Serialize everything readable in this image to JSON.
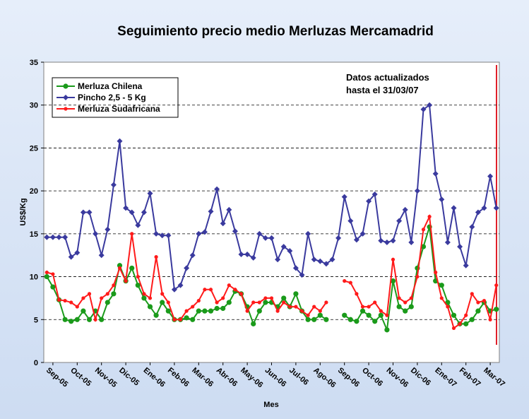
{
  "chart_data": {
    "type": "line",
    "title": "Seguimiento precio medio Merluzas Mercamadrid",
    "y_label": "US$/Kg",
    "x_label": "Mes",
    "annotation": [
      "Datos actualizados",
      "hasta el 31/03/07"
    ],
    "categories": [
      null,
      "Sep-05",
      null,
      null,
      null,
      "Oct-05",
      null,
      null,
      null,
      "Nov-05",
      null,
      null,
      null,
      "Dic-05",
      null,
      null,
      null,
      "Ene-06",
      null,
      null,
      null,
      "Feb-06",
      null,
      null,
      null,
      "Mar-06",
      null,
      null,
      null,
      "Abr-06",
      null,
      null,
      null,
      "May-06",
      null,
      null,
      null,
      "Jun-06",
      null,
      null,
      null,
      "Jul-06",
      null,
      null,
      null,
      "Ago-06",
      null,
      null,
      null,
      "Sep-06",
      null,
      null,
      null,
      "Oct-06",
      null,
      null,
      null,
      "Nov-06",
      null,
      null,
      null,
      "Dic-06",
      null,
      null,
      null,
      "Ene-07",
      null,
      null,
      null,
      "Feb-07",
      null,
      null,
      null,
      "Mar-07",
      null
    ],
    "series": [
      {
        "name": "Pincho 2,5 - 5 Kg",
        "color": "#3a3a9e",
        "marker": "diamond",
        "values": [
          14.6,
          14.6,
          14.6,
          14.6,
          12.3,
          12.8,
          17.5,
          17.5,
          15.0,
          12.5,
          15.5,
          20.7,
          25.8,
          18.0,
          17.5,
          16.0,
          17.5,
          19.7,
          15.0,
          14.8,
          14.8,
          8.5,
          9.0,
          11.0,
          12.5,
          15.0,
          15.2,
          17.6,
          20.2,
          16.2,
          17.8,
          15.3,
          12.6,
          12.6,
          12.2,
          15.0,
          14.5,
          14.5,
          12.0,
          13.5,
          13.0,
          11.0,
          10.2,
          15.0,
          12.0,
          11.8,
          11.5,
          12.0,
          14.5,
          19.3,
          16.5,
          14.3,
          15.0,
          18.8,
          19.6,
          14.2,
          14.0,
          14.2,
          16.5,
          17.8,
          14.0,
          20.0,
          29.5,
          30.0,
          22.0,
          19.0,
          14.0,
          18.0,
          13.5,
          11.3,
          15.8,
          17.5,
          18.0,
          21.7,
          18.0
        ]
      },
      {
        "name": "Merluza Chilena",
        "color": "#1a9a1a",
        "marker": "circle",
        "values": [
          10.0,
          8.8,
          7.3,
          5.0,
          4.8,
          5.0,
          6.0,
          5.0,
          6.0,
          5.0,
          7.0,
          8.0,
          11.3,
          9.5,
          11.0,
          9.0,
          7.5,
          6.5,
          5.5,
          7.0,
          6.0,
          5.0,
          5.0,
          5.2,
          5.0,
          6.0,
          6.0,
          6.0,
          6.3,
          6.3,
          7.0,
          8.3,
          8.0,
          6.5,
          4.5,
          6.0,
          7.0,
          7.0,
          6.5,
          7.5,
          6.5,
          8.0,
          6.0,
          5.0,
          5.0,
          5.5,
          5.0,
          null,
          null,
          5.5,
          5.0,
          4.8,
          6.0,
          5.5,
          4.8,
          5.5,
          3.8,
          9.5,
          6.5,
          6.0,
          6.5,
          11.0,
          13.5,
          15.8,
          9.5,
          9.0,
          7.0,
          5.5,
          4.5,
          4.5,
          5.0,
          6.0,
          7.0,
          6.0,
          6.2
        ]
      },
      {
        "name": "Merluza Sudafricana",
        "color": "#ff1a1a",
        "marker": "dot",
        "values": [
          10.5,
          10.3,
          7.3,
          7.2,
          7.0,
          6.5,
          7.5,
          8.0,
          5.0,
          7.5,
          8.0,
          9.0,
          11.0,
          9.5,
          15.0,
          10.0,
          8.0,
          7.5,
          12.3,
          8.0,
          7.0,
          5.0,
          5.0,
          6.0,
          6.5,
          7.2,
          8.5,
          8.5,
          7.0,
          7.5,
          9.0,
          8.5,
          8.0,
          6.0,
          7.0,
          7.0,
          7.5,
          7.5,
          6.0,
          7.0,
          6.5,
          6.5,
          6.0,
          5.5,
          6.5,
          6.0,
          7.0,
          null,
          null,
          9.5,
          9.3,
          8.0,
          6.5,
          6.5,
          7.0,
          6.0,
          5.5,
          12.0,
          7.5,
          7.0,
          7.5,
          10.0,
          15.5,
          17.0,
          10.5,
          7.5,
          6.5,
          4.0,
          4.5,
          5.5,
          8.0,
          7.0,
          7.2,
          5.0,
          9.0
        ]
      }
    ],
    "legend_order": [
      1,
      0,
      2
    ],
    "ylim": [
      0,
      35
    ],
    "yticks": [
      0,
      5,
      10,
      15,
      20,
      25,
      30,
      35
    ],
    "grid": true
  }
}
